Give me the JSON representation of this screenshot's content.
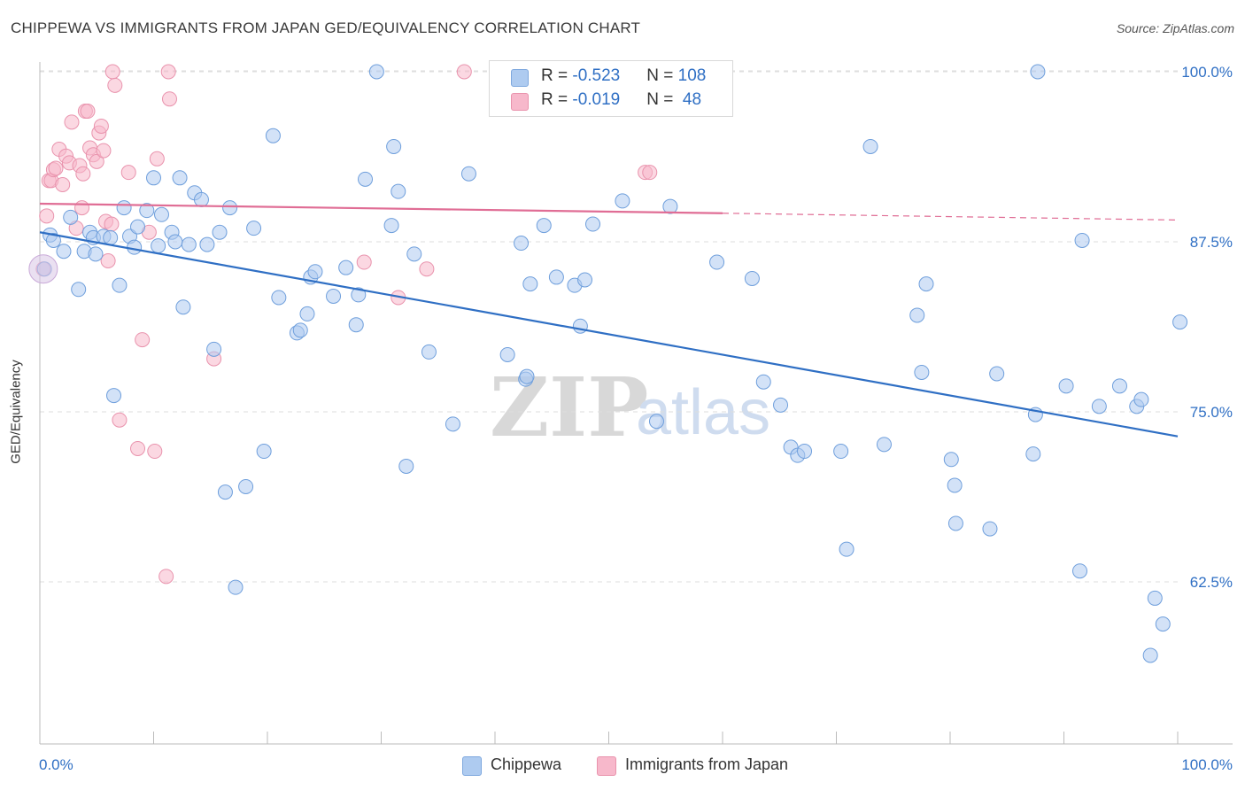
{
  "header": {
    "title": "CHIPPEWA VS IMMIGRANTS FROM JAPAN GED/EQUIVALENCY CORRELATION CHART",
    "source": "Source: ZipAtlas.com"
  },
  "watermark": {
    "zip": "ZIP",
    "atlas": "atlas"
  },
  "legend": {
    "rows": [
      {
        "r_label": "R = ",
        "r_value": "-0.523",
        "n_label": "N = ",
        "n_value": "108",
        "color": "#aecbf0"
      },
      {
        "r_label": "R = ",
        "r_value": "-0.019",
        "n_label": "N = ",
        "n_value": " 48",
        "color": "#f7b8cb"
      }
    ]
  },
  "bottom_legend": [
    {
      "label": "Chippewa",
      "color": "#aecbf0"
    },
    {
      "label": "Immigrants from Japan",
      "color": "#f7b8cb"
    }
  ],
  "chart_data": {
    "type": "scatter",
    "title": "CHIPPEWA VS IMMIGRANTS FROM JAPAN GED/EQUIVALENCY CORRELATION CHART",
    "xlabel": "",
    "ylabel": "GED/Equivalency",
    "xlim": [
      0,
      100
    ],
    "ylim": [
      51,
      101
    ],
    "x_tick_labels": [
      "0.0%",
      "100.0%"
    ],
    "y_ticks": [
      62.5,
      75.0,
      87.5,
      100.0
    ],
    "y_tick_labels": [
      "62.5%",
      "75.0%",
      "87.5%",
      "100.0%"
    ],
    "grid": true,
    "legend_position": "top-center",
    "colors": {
      "chippewa": "#2f6fc4",
      "japan": "#e06d95"
    },
    "series": [
      {
        "name": "Chippewa",
        "color": "#2f6fc4",
        "fill": "#aecbf0",
        "trend": {
          "x0": 0,
          "y0": 88.2,
          "x1": 100,
          "y1": 73.2,
          "style": "solid"
        },
        "points": [
          [
            0.4,
            85.5
          ],
          [
            0.9,
            88
          ],
          [
            1.2,
            87.6
          ],
          [
            2.1,
            86.8
          ],
          [
            2.7,
            89.3
          ],
          [
            3.4,
            84
          ],
          [
            3.9,
            86.8
          ],
          [
            4.4,
            88.2
          ],
          [
            4.7,
            87.8
          ],
          [
            4.9,
            86.6
          ],
          [
            5.6,
            87.9
          ],
          [
            6.2,
            87.8
          ],
          [
            6.5,
            76.2
          ],
          [
            7.0,
            84.3
          ],
          [
            7.4,
            90
          ],
          [
            7.9,
            87.9
          ],
          [
            8.3,
            87.1
          ],
          [
            8.6,
            88.6
          ],
          [
            9.4,
            89.8
          ],
          [
            10.0,
            92.2
          ],
          [
            10.4,
            87.2
          ],
          [
            10.7,
            89.5
          ],
          [
            11.6,
            88.2
          ],
          [
            11.9,
            87.5
          ],
          [
            12.3,
            92.2
          ],
          [
            12.6,
            82.7
          ],
          [
            13.1,
            87.3
          ],
          [
            13.6,
            91.1
          ],
          [
            14.2,
            90.6
          ],
          [
            14.7,
            87.3
          ],
          [
            15.3,
            79.6
          ],
          [
            15.8,
            88.2
          ],
          [
            16.3,
            69.1
          ],
          [
            16.7,
            90
          ],
          [
            17.2,
            62.1
          ],
          [
            18.1,
            69.5
          ],
          [
            18.8,
            88.5
          ],
          [
            19.7,
            72.1
          ],
          [
            20.5,
            95.3
          ],
          [
            21.0,
            83.4
          ],
          [
            22.6,
            80.8
          ],
          [
            22.9,
            81
          ],
          [
            23.5,
            82.2
          ],
          [
            23.8,
            84.9
          ],
          [
            24.2,
            85.3
          ],
          [
            25.8,
            83.5
          ],
          [
            26.9,
            85.6
          ],
          [
            27.8,
            81.4
          ],
          [
            28.0,
            83.6
          ],
          [
            28.6,
            92.1
          ],
          [
            29.6,
            100
          ],
          [
            30.9,
            88.7
          ],
          [
            31.1,
            94.5
          ],
          [
            31.5,
            91.2
          ],
          [
            32.2,
            71
          ],
          [
            32.9,
            86.6
          ],
          [
            34.2,
            79.4
          ],
          [
            36.3,
            74.1
          ],
          [
            37.7,
            92.5
          ],
          [
            41.1,
            79.2
          ],
          [
            42.3,
            87.4
          ],
          [
            42.7,
            77.4
          ],
          [
            42.8,
            77.6
          ],
          [
            43.1,
            84.4
          ],
          [
            44.3,
            88.7
          ],
          [
            45.4,
            84.9
          ],
          [
            47.0,
            84.3
          ],
          [
            47.5,
            81.3
          ],
          [
            47.9,
            84.7
          ],
          [
            48.6,
            88.8
          ],
          [
            51.2,
            90.5
          ],
          [
            54.2,
            74.3
          ],
          [
            55.4,
            90.1
          ],
          [
            59.5,
            86
          ],
          [
            62.6,
            84.8
          ],
          [
            63.6,
            77.2
          ],
          [
            65.1,
            75.5
          ],
          [
            66.0,
            72.4
          ],
          [
            66.6,
            71.8
          ],
          [
            67.2,
            72.1
          ],
          [
            70.4,
            72.1
          ],
          [
            70.9,
            64.9
          ],
          [
            73.0,
            94.5
          ],
          [
            74.2,
            72.6
          ],
          [
            77.1,
            82.1
          ],
          [
            77.5,
            77.9
          ],
          [
            77.9,
            84.4
          ],
          [
            80.1,
            71.5
          ],
          [
            80.4,
            69.6
          ],
          [
            80.5,
            66.8
          ],
          [
            83.5,
            66.4
          ],
          [
            84.1,
            77.8
          ],
          [
            87.3,
            71.9
          ],
          [
            87.5,
            74.8
          ],
          [
            87.7,
            100
          ],
          [
            90.2,
            76.9
          ],
          [
            91.4,
            63.3
          ],
          [
            91.6,
            87.6
          ],
          [
            93.1,
            75.4
          ],
          [
            94.9,
            76.9
          ],
          [
            96.4,
            75.4
          ],
          [
            96.8,
            75.9
          ],
          [
            97.6,
            57.1
          ],
          [
            98.0,
            61.3
          ],
          [
            98.7,
            59.4
          ],
          [
            100.2,
            81.6
          ]
        ]
      },
      {
        "name": "Immigrants from Japan",
        "color": "#e06d95",
        "fill": "#f7b8cb",
        "trend": {
          "x0": 0,
          "y0": 90.3,
          "x1": 60,
          "y1": 89.6,
          "x2": 100,
          "y2": 89.1,
          "style": "solid-then-dashed",
          "dash_from": 60
        },
        "points": [
          [
            0.3,
            85.5
          ],
          [
            0.6,
            89.4
          ],
          [
            0.8,
            92
          ],
          [
            1.0,
            92
          ],
          [
            1.2,
            92.8
          ],
          [
            1.4,
            92.9
          ],
          [
            1.7,
            94.3
          ],
          [
            2.0,
            91.7
          ],
          [
            2.3,
            93.8
          ],
          [
            2.6,
            93.3
          ],
          [
            2.8,
            96.3
          ],
          [
            3.2,
            88.5
          ],
          [
            3.5,
            93.1
          ],
          [
            3.7,
            90
          ],
          [
            3.8,
            92.5
          ],
          [
            4.0,
            97.1
          ],
          [
            4.2,
            97.1
          ],
          [
            4.4,
            94.4
          ],
          [
            4.7,
            93.9
          ],
          [
            5.0,
            93.4
          ],
          [
            5.2,
            95.5
          ],
          [
            5.4,
            96
          ],
          [
            5.6,
            94.2
          ],
          [
            5.8,
            89
          ],
          [
            6.0,
            86.1
          ],
          [
            6.3,
            88.8
          ],
          [
            6.4,
            100
          ],
          [
            6.6,
            99
          ],
          [
            7.0,
            74.4
          ],
          [
            7.8,
            92.6
          ],
          [
            8.6,
            72.3
          ],
          [
            9.0,
            80.3
          ],
          [
            9.6,
            88.2
          ],
          [
            10.1,
            72.1
          ],
          [
            10.3,
            93.6
          ],
          [
            11.1,
            62.9
          ],
          [
            11.3,
            100
          ],
          [
            11.4,
            98
          ],
          [
            15.3,
            78.9
          ],
          [
            28.5,
            86
          ],
          [
            31.5,
            83.4
          ],
          [
            34.0,
            85.5
          ],
          [
            37.3,
            100
          ],
          [
            53.2,
            92.6
          ],
          [
            53.6,
            92.6
          ]
        ]
      }
    ]
  }
}
